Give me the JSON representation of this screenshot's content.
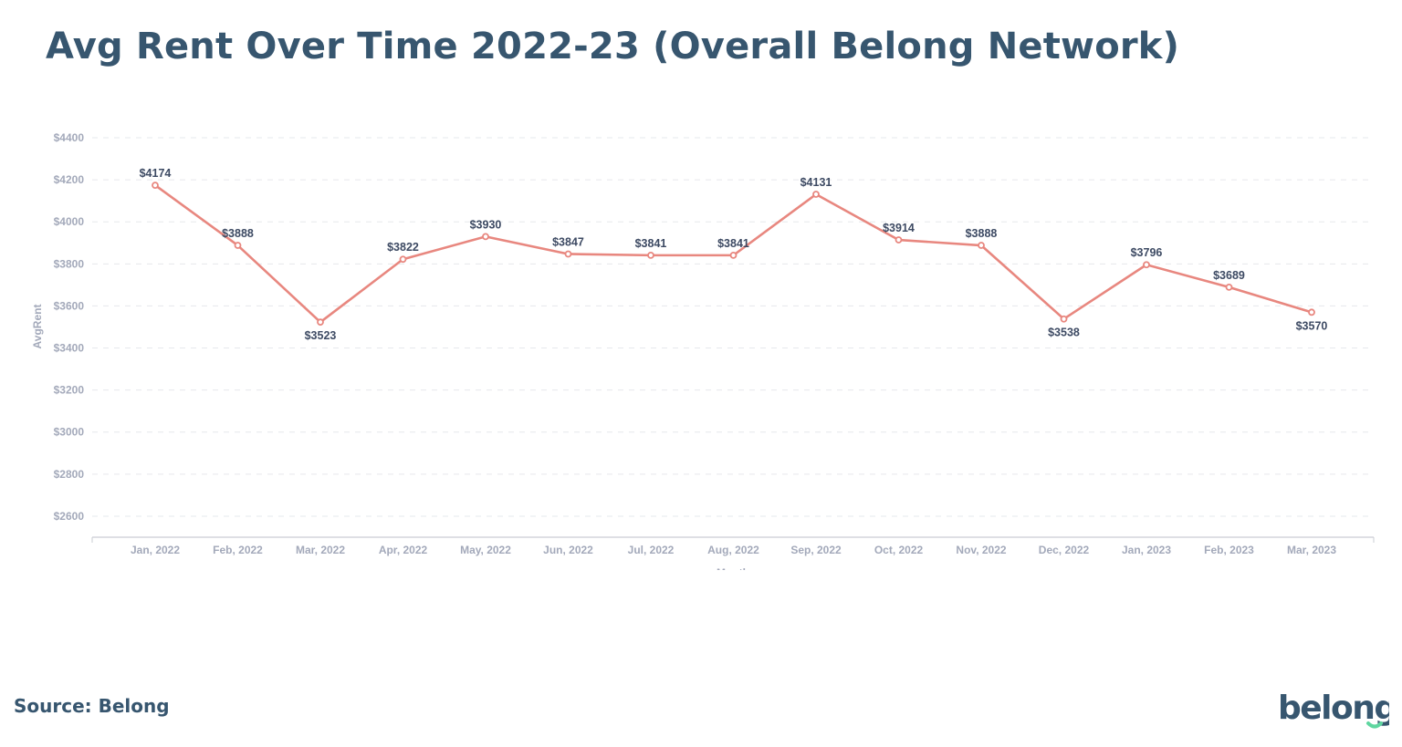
{
  "title": "Avg Rent Over Time 2022-23 (Overall Belong Network)",
  "source": "Source: Belong",
  "logo_text": "belong",
  "colors": {
    "line": "#e8877f",
    "title": "#37566f",
    "logo_smile": "#5fd6a0"
  },
  "chart_data": {
    "type": "line",
    "title": "",
    "xlabel": "Month",
    "ylabel": "AvgRent",
    "ylim": [
      2500,
      4400
    ],
    "yticks": [
      2600,
      2800,
      3000,
      3200,
      3400,
      3600,
      3800,
      4000,
      4200,
      4400
    ],
    "ytick_labels": [
      "$2600",
      "$2800",
      "$3000",
      "$3200",
      "$3400",
      "$3600",
      "$3800",
      "$4000",
      "$4200",
      "$4400"
    ],
    "grid": true,
    "categories": [
      "Jan, 2022",
      "Feb, 2022",
      "Mar, 2022",
      "Apr, 2022",
      "May, 2022",
      "Jun, 2022",
      "Jul, 2022",
      "Aug, 2022",
      "Sep, 2022",
      "Oct, 2022",
      "Nov, 2022",
      "Dec, 2022",
      "Jan, 2023",
      "Feb, 2023",
      "Mar, 2023"
    ],
    "values": [
      4174,
      3888,
      3523,
      3822,
      3930,
      3847,
      3841,
      3841,
      4131,
      3914,
      3888,
      3538,
      3796,
      3689,
      3570
    ],
    "data_labels": [
      "$4174",
      "$3888",
      "$3523",
      "$3822",
      "$3930",
      "$3847",
      "$3841",
      "$3841",
      "$4131",
      "$3914",
      "$3888",
      "$3538",
      "$3796",
      "$3689",
      "$3570"
    ],
    "label_positions": [
      "above",
      "above",
      "below",
      "above",
      "above",
      "above",
      "above",
      "above",
      "above",
      "above",
      "above",
      "below",
      "above",
      "above",
      "below"
    ]
  }
}
